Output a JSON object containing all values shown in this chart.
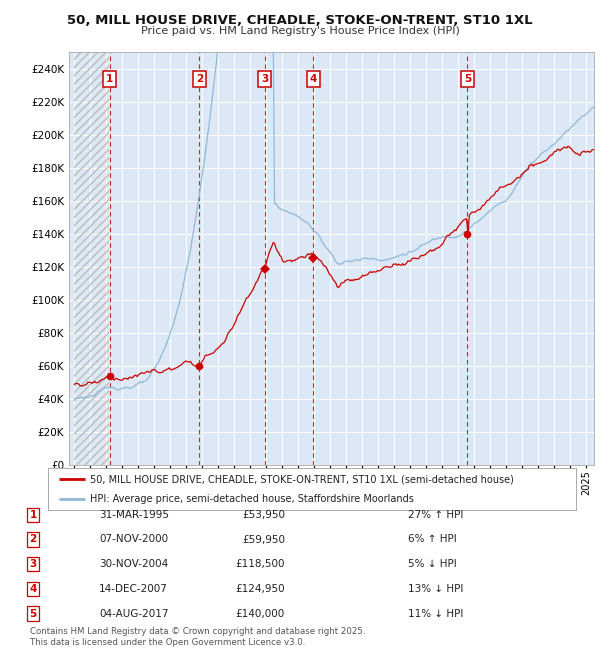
{
  "title_line1": "50, MILL HOUSE DRIVE, CHEADLE, STOKE-ON-TRENT, ST10 1XL",
  "title_line2": "Price paid vs. HM Land Registry's House Price Index (HPI)",
  "legend_line1": "50, MILL HOUSE DRIVE, CHEADLE, STOKE-ON-TRENT, ST10 1XL (semi-detached house)",
  "legend_line2": "HPI: Average price, semi-detached house, Staffordshire Moorlands",
  "hpi_color": "#90b8d8",
  "price_color": "#cc0000",
  "bg_color": "#dce8f5",
  "grid_color": "#ffffff",
  "sale_dates_x": [
    1995.25,
    2000.85,
    2004.92,
    2007.96,
    2017.59
  ],
  "sale_prices": [
    53950,
    59950,
    118500,
    124950,
    140000
  ],
  "sale_labels": [
    "1",
    "2",
    "3",
    "4",
    "5"
  ],
  "sale_markers": [
    "o",
    "o",
    "D",
    "D",
    "o"
  ],
  "table_rows": [
    [
      "1",
      "31-MAR-1995",
      "£53,950",
      "27% ↑ HPI"
    ],
    [
      "2",
      "07-NOV-2000",
      "£59,950",
      "6% ↑ HPI"
    ],
    [
      "3",
      "30-NOV-2004",
      "£118,500",
      "5% ↓ HPI"
    ],
    [
      "4",
      "14-DEC-2007",
      "£124,950",
      "13% ↓ HPI"
    ],
    [
      "5",
      "04-AUG-2017",
      "£140,000",
      "11% ↓ HPI"
    ]
  ],
  "footnote": "Contains HM Land Registry data © Crown copyright and database right 2025.\nThis data is licensed under the Open Government Licence v3.0.",
  "ylim": [
    0,
    250000
  ],
  "yticks": [
    0,
    20000,
    40000,
    60000,
    80000,
    100000,
    120000,
    140000,
    160000,
    180000,
    200000,
    220000,
    240000
  ],
  "ytick_labels": [
    "£0",
    "£20K",
    "£40K",
    "£60K",
    "£80K",
    "£100K",
    "£120K",
    "£140K",
    "£160K",
    "£180K",
    "£200K",
    "£220K",
    "£240K"
  ],
  "xstart_year": 1993,
  "xend_year": 2025
}
